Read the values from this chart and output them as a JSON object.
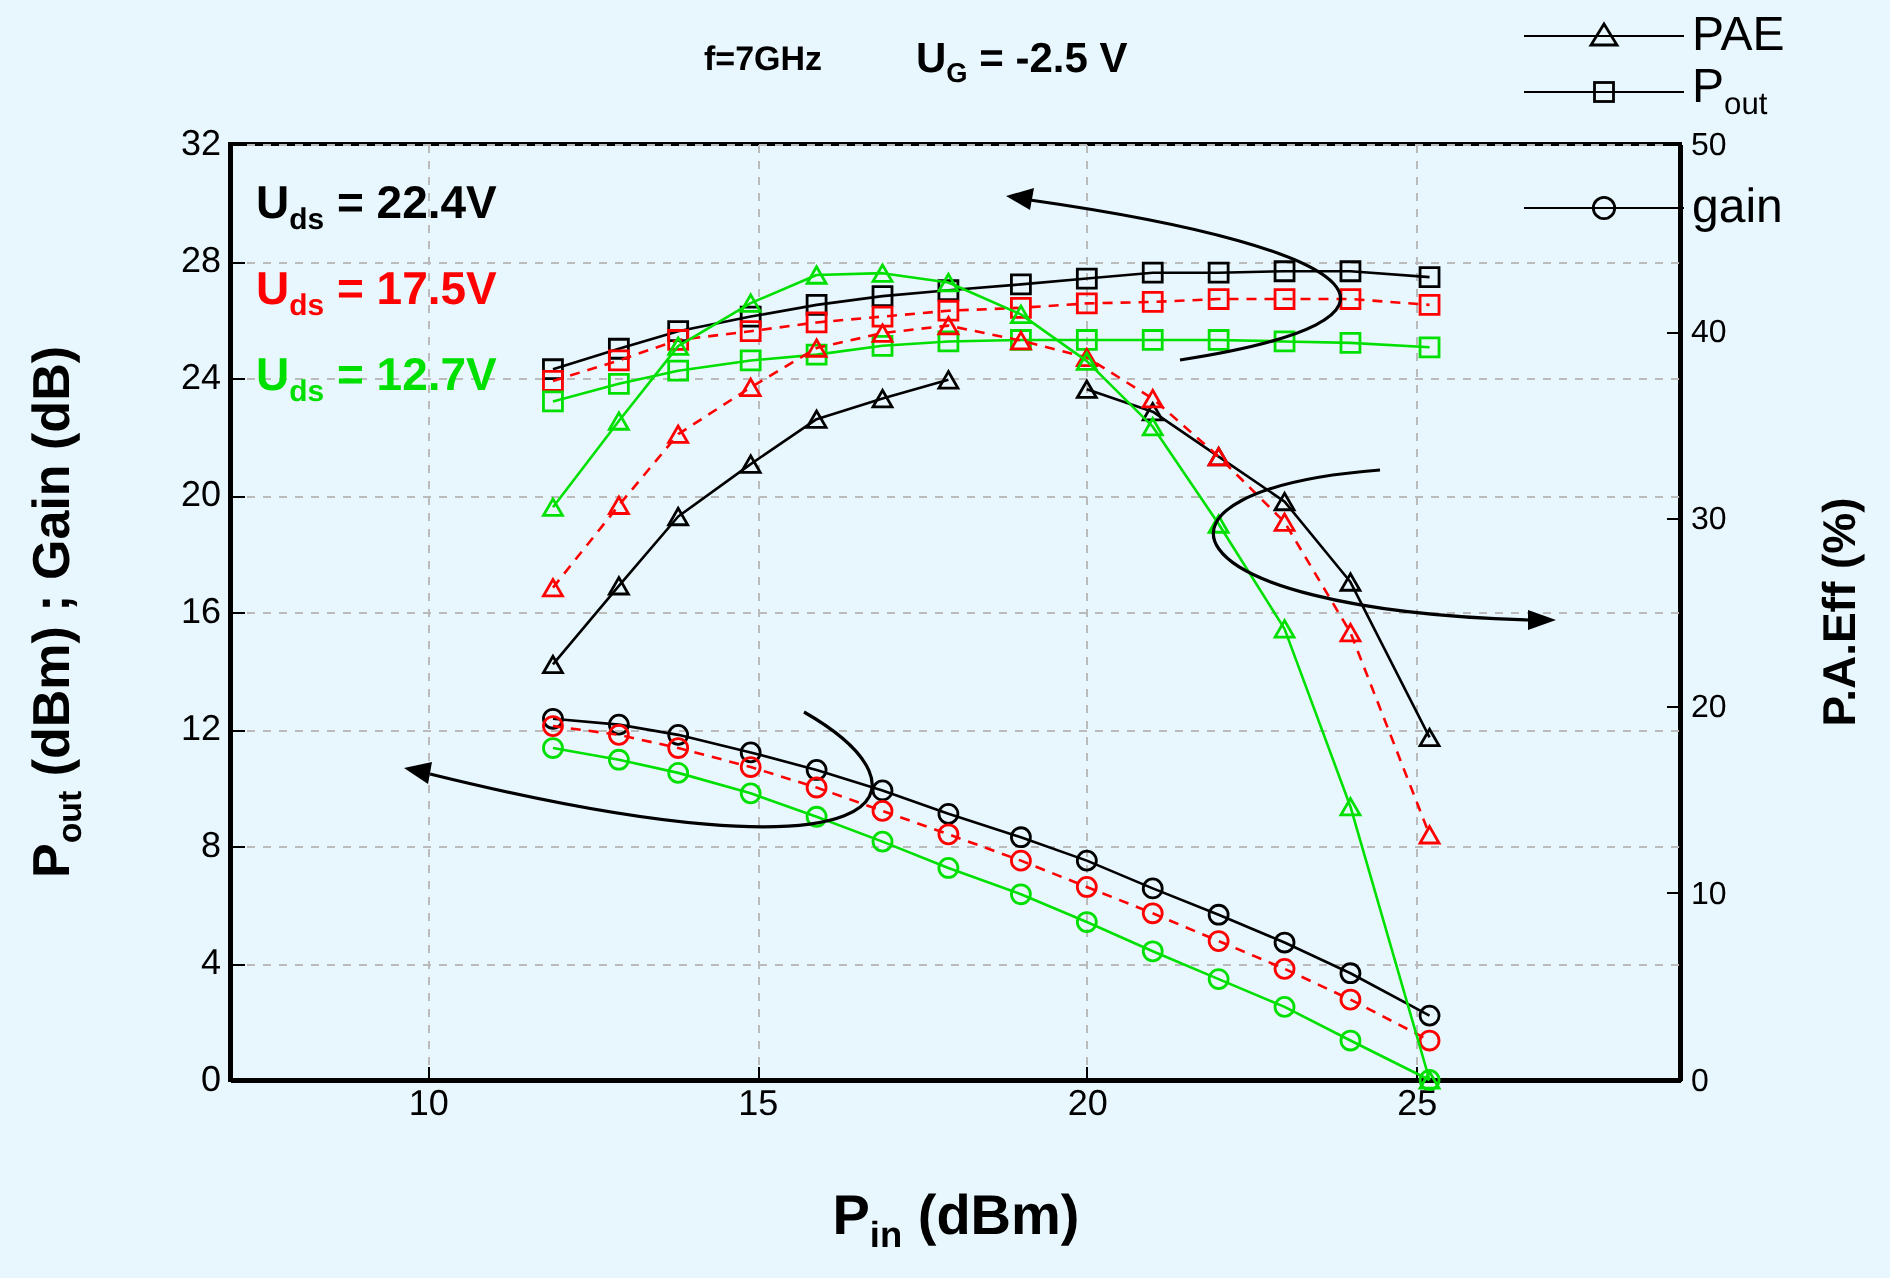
{
  "chart_data": {
    "type": "line",
    "title": "f=7GHz",
    "subtitle": "U$_{G}$ = -2.5 V",
    "xlabel": "P$_{in}$ (dBm)",
    "ylabel": "P$_{out}$ (dBm) ; Gain (dB)",
    "y2label": "P.A.Eff (%)",
    "x": [
      11.9,
      12.9,
      13.8,
      14.9,
      15.9,
      16.9,
      17.9,
      19,
      20,
      21,
      22,
      23,
      24,
      25.2
    ],
    "xlim": [
      7,
      29
    ],
    "xticks": [
      10,
      15,
      20,
      25
    ],
    "ylim": [
      0,
      32
    ],
    "yticks": [
      0,
      4,
      8,
      12,
      16,
      20,
      24,
      28,
      32
    ],
    "y2lim": [
      0,
      50
    ],
    "y2ticks": [
      0,
      10,
      20,
      30,
      40,
      50
    ],
    "grid": true,
    "legend": "top right",
    "annotations": [
      "U$_{ds}$ = 22.4V",
      "U$_{ds}$ = 17.5V",
      "U$_{ds}$ = 12.7V"
    ],
    "series": [
      {
        "name": "PAE",
        "color": "#000000",
        "marker": "triangle",
        "line_style": "solid",
        "axis": "y2",
        "values": [
          22.2,
          26.4,
          30.1,
          32.9,
          35.3,
          36.4,
          37.4,
          null,
          36.9,
          35.7,
          33.3,
          30.9,
          26.6,
          18.3
        ]
      },
      {
        "name": "P$_{out}$",
        "color": "#000000",
        "marker": "square",
        "line_style": "solid",
        "values": [
          24.3,
          25.0,
          25.6,
          26.1,
          26.5,
          26.8,
          27.0,
          27.2,
          27.4,
          27.6,
          27.6,
          27.65,
          27.65,
          27.45
        ]
      },
      {
        "name": "gain",
        "color": "#000000",
        "marker": "circle",
        "line_style": "solid",
        "values": [
          12.35,
          12.15,
          11.8,
          11.2,
          10.6,
          9.9,
          9.1,
          8.3,
          7.5,
          6.55,
          5.65,
          4.7,
          3.65,
          2.2
        ]
      },
      {
        "color": "#ff0000",
        "marker": "triangle",
        "line_style": "dashed",
        "axis": "y2",
        "values": [
          26.3,
          30.7,
          34.5,
          37.0,
          39.1,
          39.9,
          40.3,
          39.5,
          38.6,
          36.4,
          33.3,
          29.8,
          23.9,
          13.1
        ]
      },
      {
        "color": "#ff0000",
        "marker": "square",
        "line_style": "dashed",
        "values": [
          23.9,
          24.6,
          25.3,
          25.6,
          25.9,
          26.1,
          26.3,
          26.4,
          26.55,
          26.6,
          26.7,
          26.7,
          26.7,
          26.5
        ]
      },
      {
        "color": "#ff0000",
        "marker": "circle",
        "line_style": "dashed",
        "values": [
          12.1,
          11.8,
          11.35,
          10.7,
          10.0,
          9.2,
          8.4,
          7.5,
          6.6,
          5.7,
          4.75,
          3.8,
          2.75,
          1.35
        ]
      },
      {
        "color": "#00e000",
        "marker": "triangle",
        "line_style": "solid",
        "axis": "y2",
        "values": [
          30.6,
          35.2,
          39.2,
          41.5,
          43.0,
          43.1,
          42.6,
          40.9,
          38.4,
          34.9,
          29.7,
          24.1,
          14.6,
          0
        ]
      },
      {
        "color": "#00e000",
        "marker": "square",
        "line_style": "solid",
        "values": [
          23.2,
          23.8,
          24.25,
          24.6,
          24.8,
          25.1,
          25.25,
          25.3,
          25.3,
          25.3,
          25.3,
          25.25,
          25.2,
          25.05
        ]
      },
      {
        "color": "#00e000",
        "marker": "circle",
        "line_style": "solid",
        "values": [
          11.35,
          10.95,
          10.5,
          9.8,
          9.0,
          8.15,
          7.25,
          6.35,
          5.4,
          4.4,
          3.45,
          2.5,
          1.35,
          0
        ]
      }
    ]
  }
}
